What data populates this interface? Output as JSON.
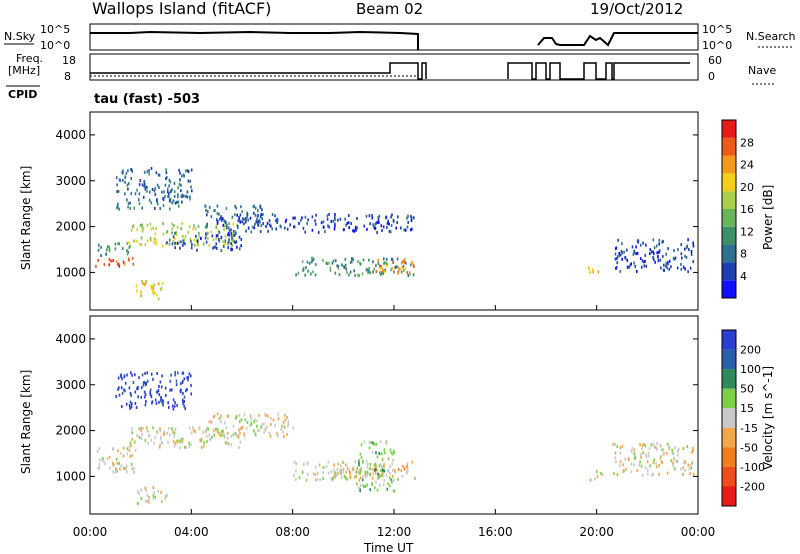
{
  "header": {
    "title": "Wallops Island (fitACF)",
    "beam": "Beam 02",
    "date": "19/Oct/2012"
  },
  "top_panels": {
    "nsky_label": "N.Sky",
    "nsky_ticks": [
      "10^5",
      "10^0"
    ],
    "nsearch_label": "N.Search",
    "nsearch_ticks": [
      "10^5",
      "10^0"
    ],
    "freq_label": "Freq.",
    "freq_unit": "[MHz]",
    "freq_ticks": [
      "18",
      "8"
    ],
    "nave_label": "Nave",
    "nave_ticks": [
      "60",
      "0"
    ],
    "cpid_label": "CPID",
    "cpid_value": "tau (fast) -503"
  },
  "x_axis": {
    "label": "Time UT",
    "ticks": [
      "00:00",
      "04:00",
      "08:00",
      "12:00",
      "16:00",
      "20:00",
      "00:00"
    ]
  },
  "colors": {
    "power": [
      "#1010ff",
      "#1f3fae",
      "#2f6f8f",
      "#3d8f6a",
      "#68b45b",
      "#a9cf4b",
      "#f5ce1a",
      "#f29a1a",
      "#ee5a1a",
      "#e81a1a"
    ],
    "velocity": [
      "#2a3fcf",
      "#2a5fa9",
      "#2e8a5a",
      "#7cd04a",
      "#c8c8c8",
      "#f2a84a",
      "#ef7e1f",
      "#ee4c1a",
      "#e81a1a"
    ]
  },
  "chart_data": [
    {
      "type": "heatmap",
      "title": "Power",
      "ylabel": "Slant Range [km]",
      "xlabel": "",
      "xlim": [
        0,
        24
      ],
      "ylim": [
        180,
        4500
      ],
      "yticks": [
        "1000",
        "2000",
        "3000",
        "4000"
      ],
      "colorbar_label": "Power [dB]",
      "colorbar_ticks": [
        "4",
        "8",
        "12",
        "16",
        "20",
        "24",
        "28"
      ],
      "features": [
        {
          "t": [
            0.2,
            1.8
          ],
          "r": [
            1150,
            1350
          ],
          "level": 8
        },
        {
          "t": [
            0.3,
            1.6
          ],
          "r": [
            1400,
            1700
          ],
          "level": 3
        },
        {
          "t": [
            1.5,
            5.8
          ],
          "r": [
            1600,
            2100
          ],
          "level": 5
        },
        {
          "t": [
            1.0,
            4.0
          ],
          "r": [
            2400,
            3300
          ],
          "level": 2
        },
        {
          "t": [
            4.5,
            6.8
          ],
          "r": [
            2000,
            2500
          ],
          "level": 2
        },
        {
          "t": [
            5.0,
            12.8
          ],
          "r": [
            1900,
            2300
          ],
          "level": 1
        },
        {
          "t": [
            3.0,
            6.0
          ],
          "r": [
            1500,
            1900
          ],
          "level": 1
        },
        {
          "t": [
            8.0,
            12.8
          ],
          "r": [
            950,
            1350
          ],
          "level": 3
        },
        {
          "t": [
            11.2,
            12.8
          ],
          "r": [
            1000,
            1300
          ],
          "level": 7
        },
        {
          "t": [
            1.8,
            3.0
          ],
          "r": [
            450,
            850
          ],
          "level": 6
        },
        {
          "t": [
            19.6,
            20.2
          ],
          "r": [
            950,
            1150
          ],
          "level": 6
        },
        {
          "t": [
            20.6,
            23.8
          ],
          "r": [
            1050,
            1750
          ],
          "level": 1
        }
      ]
    },
    {
      "type": "heatmap",
      "title": "Velocity",
      "ylabel": "Slant Range [km]",
      "xlabel": "Time UT",
      "xlim": [
        0,
        24
      ],
      "ylim": [
        180,
        4500
      ],
      "yticks": [
        "1000",
        "2000",
        "3000",
        "4000"
      ],
      "colorbar_label": "Velocity [m s^-1]",
      "colorbar_ticks": [
        "200",
        "100",
        "50",
        "15",
        "-15",
        "-50",
        "-100",
        "-200"
      ],
      "features": [
        {
          "t": [
            0.2,
            1.8
          ],
          "r": [
            1100,
            1650
          ],
          "level": 4
        },
        {
          "t": [
            1.5,
            6.0
          ],
          "r": [
            1650,
            2100
          ],
          "level": 4
        },
        {
          "t": [
            1.0,
            4.0
          ],
          "r": [
            2500,
            3300
          ],
          "level": 0
        },
        {
          "t": [
            4.5,
            8.0
          ],
          "r": [
            1900,
            2400
          ],
          "level": 4
        },
        {
          "t": [
            8.0,
            12.8
          ],
          "r": [
            950,
            1350
          ],
          "level": 4
        },
        {
          "t": [
            9.5,
            12.5
          ],
          "r": [
            1000,
            1200
          ],
          "level": 5
        },
        {
          "t": [
            10.5,
            12.0
          ],
          "r": [
            700,
            1800
          ],
          "level": 3
        },
        {
          "t": [
            1.8,
            3.0
          ],
          "r": [
            400,
            800
          ],
          "level": 4
        },
        {
          "t": [
            19.6,
            20.2
          ],
          "r": [
            950,
            1150
          ],
          "level": 4
        },
        {
          "t": [
            20.6,
            23.8
          ],
          "r": [
            1050,
            1750
          ],
          "level": 4
        }
      ]
    }
  ]
}
